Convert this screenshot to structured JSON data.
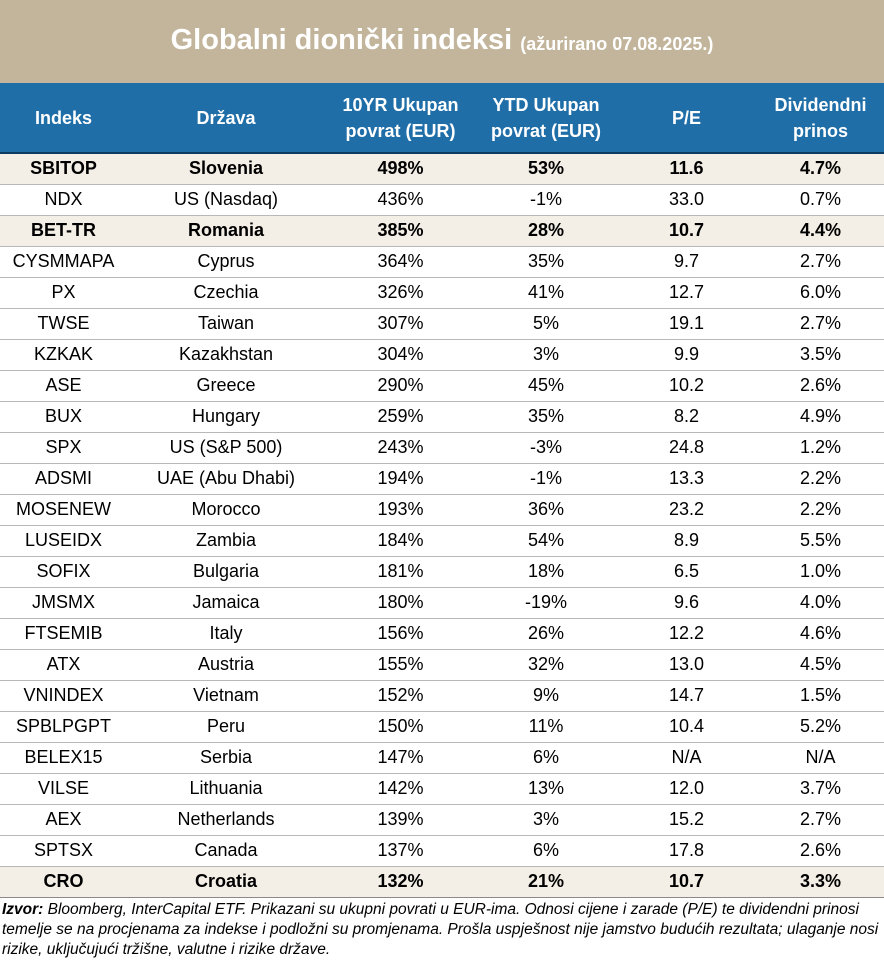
{
  "title": {
    "main": "Globalni dionički indeksi",
    "sub": "(ažurirano 07.08.2025.)"
  },
  "columns": {
    "index": "Indeks",
    "country": "Država",
    "ret10_line1": "10YR Ukupan",
    "ret10_line2": "povrat (EUR)",
    "ytd_line1": "YTD Ukupan",
    "ytd_line2": "povrat (EUR)",
    "pe": "P/E",
    "div_line1": "Dividendni",
    "div_line2": "prinos"
  },
  "rows": [
    {
      "index": "SBITOP",
      "country": "Slovenia",
      "ret10": "498%",
      "ytd": "53%",
      "pe": "11.6",
      "div": "4.7%",
      "highlight": true
    },
    {
      "index": "NDX",
      "country": "US (Nasdaq)",
      "ret10": "436%",
      "ytd": "-1%",
      "pe": "33.0",
      "div": "0.7%",
      "highlight": false
    },
    {
      "index": "BET-TR",
      "country": "Romania",
      "ret10": "385%",
      "ytd": "28%",
      "pe": "10.7",
      "div": "4.4%",
      "highlight": true
    },
    {
      "index": "CYSMMAPA",
      "country": "Cyprus",
      "ret10": "364%",
      "ytd": "35%",
      "pe": "9.7",
      "div": "2.7%",
      "highlight": false
    },
    {
      "index": "PX",
      "country": "Czechia",
      "ret10": "326%",
      "ytd": "41%",
      "pe": "12.7",
      "div": "6.0%",
      "highlight": false
    },
    {
      "index": "TWSE",
      "country": "Taiwan",
      "ret10": "307%",
      "ytd": "5%",
      "pe": "19.1",
      "div": "2.7%",
      "highlight": false
    },
    {
      "index": "KZKAK",
      "country": "Kazakhstan",
      "ret10": "304%",
      "ytd": "3%",
      "pe": "9.9",
      "div": "3.5%",
      "highlight": false
    },
    {
      "index": "ASE",
      "country": "Greece",
      "ret10": "290%",
      "ytd": "45%",
      "pe": "10.2",
      "div": "2.6%",
      "highlight": false
    },
    {
      "index": "BUX",
      "country": "Hungary",
      "ret10": "259%",
      "ytd": "35%",
      "pe": "8.2",
      "div": "4.9%",
      "highlight": false
    },
    {
      "index": "SPX",
      "country": "US (S&P 500)",
      "ret10": "243%",
      "ytd": "-3%",
      "pe": "24.8",
      "div": "1.2%",
      "highlight": false
    },
    {
      "index": "ADSMI",
      "country": "UAE (Abu Dhabi)",
      "ret10": "194%",
      "ytd": "-1%",
      "pe": "13.3",
      "div": "2.2%",
      "highlight": false
    },
    {
      "index": "MOSENEW",
      "country": "Morocco",
      "ret10": "193%",
      "ytd": "36%",
      "pe": "23.2",
      "div": "2.2%",
      "highlight": false
    },
    {
      "index": "LUSEIDX",
      "country": "Zambia",
      "ret10": "184%",
      "ytd": "54%",
      "pe": "8.9",
      "div": "5.5%",
      "highlight": false
    },
    {
      "index": "SOFIX",
      "country": "Bulgaria",
      "ret10": "181%",
      "ytd": "18%",
      "pe": "6.5",
      "div": "1.0%",
      "highlight": false
    },
    {
      "index": "JMSMX",
      "country": "Jamaica",
      "ret10": "180%",
      "ytd": "-19%",
      "pe": "9.6",
      "div": "4.0%",
      "highlight": false
    },
    {
      "index": "FTSEMIB",
      "country": "Italy",
      "ret10": "156%",
      "ytd": "26%",
      "pe": "12.2",
      "div": "4.6%",
      "highlight": false
    },
    {
      "index": "ATX",
      "country": "Austria",
      "ret10": "155%",
      "ytd": "32%",
      "pe": "13.0",
      "div": "4.5%",
      "highlight": false
    },
    {
      "index": "VNINDEX",
      "country": "Vietnam",
      "ret10": "152%",
      "ytd": "9%",
      "pe": "14.7",
      "div": "1.5%",
      "highlight": false
    },
    {
      "index": "SPBLPGPT",
      "country": "Peru",
      "ret10": "150%",
      "ytd": "11%",
      "pe": "10.4",
      "div": "5.2%",
      "highlight": false
    },
    {
      "index": "BELEX15",
      "country": "Serbia",
      "ret10": "147%",
      "ytd": "6%",
      "pe": "N/A",
      "div": "N/A",
      "highlight": false
    },
    {
      "index": "VILSE",
      "country": "Lithuania",
      "ret10": "142%",
      "ytd": "13%",
      "pe": "12.0",
      "div": "3.7%",
      "highlight": false
    },
    {
      "index": "AEX",
      "country": "Netherlands",
      "ret10": "139%",
      "ytd": "3%",
      "pe": "15.2",
      "div": "2.7%",
      "highlight": false
    },
    {
      "index": "SPTSX",
      "country": "Canada",
      "ret10": "137%",
      "ytd": "6%",
      "pe": "17.8",
      "div": "2.6%",
      "highlight": false
    },
    {
      "index": "CRO",
      "country": "Croatia",
      "ret10": "132%",
      "ytd": "21%",
      "pe": "10.7",
      "div": "3.3%",
      "highlight": true
    }
  ],
  "footnote": {
    "label": "Izvor:",
    "text": " Bloomberg, InterCapital ETF. Prikazani su ukupni povrati u EUR-ima. Odnosi cijene i zarade (P/E) te dividendni prinosi temelje se na procjenama za indekse i podložni su promjenama. Prošla uspješnost nije jamstvo budućih rezultata; ulaganje nosi rizike, uključujući tržišne, valutne i rizike države."
  },
  "colors": {
    "title_bg": "#c2b59b",
    "header_bg": "#1f6ea8",
    "highlight_bg": "#f4efe6"
  }
}
